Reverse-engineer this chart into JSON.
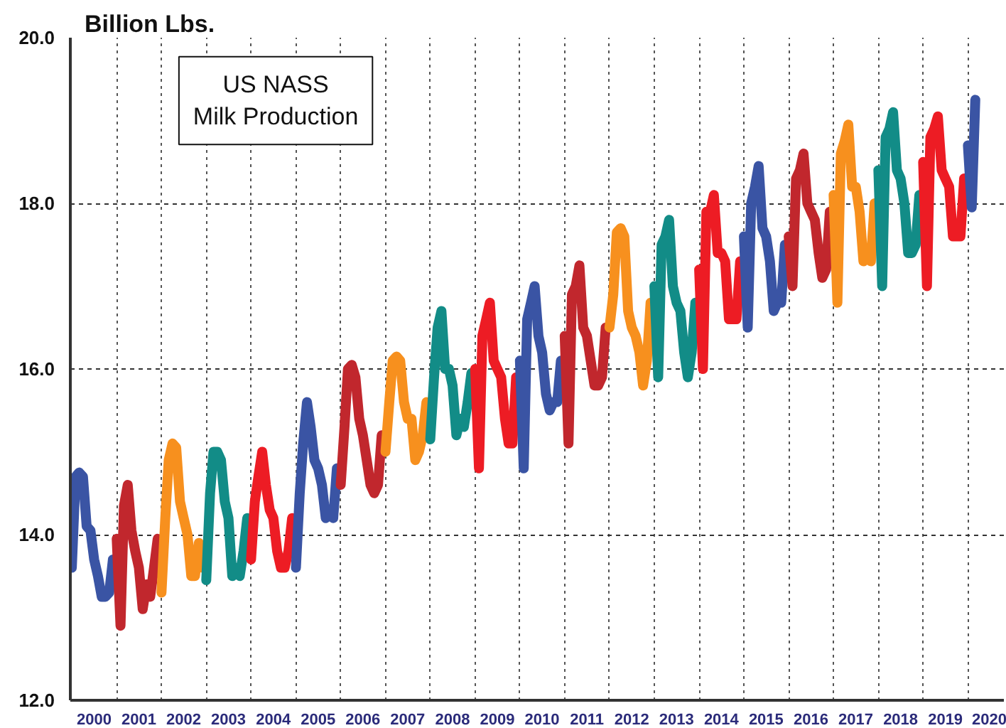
{
  "chart_data": {
    "type": "line",
    "title": "US NASS\nMilk Production",
    "ylabel": "Billion Lbs.",
    "xlim": [
      "1999-12-20",
      "2020-10-20"
    ],
    "ylim": [
      12,
      20
    ],
    "yticks": [
      {
        "value": 12,
        "label": "12.0"
      },
      {
        "value": 14,
        "label": "14.0"
      },
      {
        "value": 16,
        "label": "16.0"
      },
      {
        "value": 18,
        "label": "18.0"
      },
      {
        "value": 20,
        "label": "20.0"
      }
    ],
    "xticks": [
      {
        "value": "2000-07-01",
        "label": "2000"
      },
      {
        "value": "2001-01-01",
        "label": null
      },
      {
        "value": "2001-07-01",
        "label": "2001"
      },
      {
        "value": "2002-01-01",
        "label": null
      },
      {
        "value": "2002-07-01",
        "label": "2002"
      },
      {
        "value": "2003-01-01",
        "label": null
      },
      {
        "value": "2003-07-01",
        "label": "2003"
      },
      {
        "value": "2004-01-01",
        "label": null
      },
      {
        "value": "2004-07-01",
        "label": "2004"
      },
      {
        "value": "2005-01-01",
        "label": null
      },
      {
        "value": "2005-07-01",
        "label": "2005"
      },
      {
        "value": "2006-01-01",
        "label": null
      },
      {
        "value": "2006-07-01",
        "label": "2006"
      },
      {
        "value": "2007-01-01",
        "label": null
      },
      {
        "value": "2007-07-01",
        "label": "2007"
      },
      {
        "value": "2008-01-01",
        "label": null
      },
      {
        "value": "2008-07-01",
        "label": "2008"
      },
      {
        "value": "2009-01-01",
        "label": null
      },
      {
        "value": "2009-07-01",
        "label": "2009"
      },
      {
        "value": "2010-01-01",
        "label": null
      },
      {
        "value": "2010-07-01",
        "label": "2010"
      },
      {
        "value": "2011-01-01",
        "label": null
      },
      {
        "value": "2011-07-01",
        "label": "2011"
      },
      {
        "value": "2012-01-01",
        "label": null
      },
      {
        "value": "2012-07-01",
        "label": "2012"
      },
      {
        "value": "2013-01-01",
        "label": null
      },
      {
        "value": "2013-07-01",
        "label": "2013"
      },
      {
        "value": "2014-01-01",
        "label": null
      },
      {
        "value": "2014-07-01",
        "label": "2014"
      },
      {
        "value": "2015-01-01",
        "label": null
      },
      {
        "value": "2015-07-01",
        "label": "2015"
      },
      {
        "value": "2016-01-01",
        "label": null
      },
      {
        "value": "2016-07-01",
        "label": "2016"
      },
      {
        "value": "2017-01-01",
        "label": null
      },
      {
        "value": "2017-07-01",
        "label": "2017"
      },
      {
        "value": "2018-01-01",
        "label": null
      },
      {
        "value": "2018-07-01",
        "label": "2018"
      },
      {
        "value": "2019-01-01",
        "label": null
      },
      {
        "value": "2019-07-01",
        "label": "2019"
      },
      {
        "value": "2020-01-01",
        "label": null
      },
      {
        "value": "2020-07-01",
        "label": "2020"
      }
    ],
    "grid": true,
    "series": [
      {
        "color": "#3a54a4",
        "x": [
          "2000-01",
          "2000-02",
          "2000-03",
          "2000-04",
          "2000-05",
          "2000-06",
          "2000-07",
          "2000-08",
          "2000-09",
          "2000-10",
          "2000-11",
          "2000-12"
        ],
        "values": [
          13.6,
          14.7,
          14.75,
          14.7,
          14.1,
          14.05,
          13.7,
          13.5,
          13.25,
          13.25,
          13.3,
          13.7
        ]
      },
      {
        "color": "#c1272d",
        "x": [
          "2001-01",
          "2001-02",
          "2001-03",
          "2001-04",
          "2001-05",
          "2001-06",
          "2001-07",
          "2001-08",
          "2001-09",
          "2001-10",
          "2001-11",
          "2001-12"
        ],
        "values": [
          13.95,
          12.9,
          14.35,
          14.6,
          14.05,
          13.8,
          13.6,
          13.1,
          13.4,
          13.25,
          13.6,
          13.95
        ]
      },
      {
        "color": "#f7901e",
        "x": [
          "2002-01",
          "2002-02",
          "2002-03",
          "2002-04",
          "2002-05",
          "2002-06",
          "2002-07",
          "2002-08",
          "2002-09",
          "2002-10",
          "2002-11",
          "2002-12"
        ],
        "values": [
          13.3,
          14.2,
          14.9,
          15.1,
          15.05,
          14.4,
          14.2,
          14.0,
          13.5,
          13.5,
          13.9,
          13.6
        ]
      },
      {
        "color": "#128c87",
        "x": [
          "2003-01",
          "2003-02",
          "2003-03",
          "2003-04",
          "2003-05",
          "2003-06",
          "2003-07",
          "2003-08",
          "2003-09",
          "2003-10",
          "2003-11",
          "2003-12"
        ],
        "values": [
          13.45,
          14.5,
          15.0,
          15.0,
          14.9,
          14.4,
          14.2,
          13.5,
          13.6,
          13.5,
          13.8,
          14.2
        ]
      },
      {
        "color": "#ed1c24",
        "x": [
          "2004-01",
          "2004-02",
          "2004-03",
          "2004-04",
          "2004-05",
          "2004-06",
          "2004-07",
          "2004-08",
          "2004-09",
          "2004-10",
          "2004-11",
          "2004-12"
        ],
        "values": [
          13.7,
          14.4,
          14.7,
          15.0,
          14.6,
          14.3,
          14.2,
          13.8,
          13.6,
          13.6,
          13.8,
          14.2
        ]
      },
      {
        "color": "#3a54a4",
        "x": [
          "2005-01",
          "2005-02",
          "2005-03",
          "2005-04",
          "2005-05",
          "2005-06",
          "2005-07",
          "2005-08",
          "2005-09",
          "2005-10",
          "2005-11",
          "2005-12"
        ],
        "values": [
          13.6,
          14.5,
          15.1,
          15.6,
          15.3,
          14.9,
          14.8,
          14.6,
          14.2,
          14.3,
          14.2,
          14.8
        ]
      },
      {
        "color": "#c1272d",
        "x": [
          "2006-01",
          "2006-02",
          "2006-03",
          "2006-04",
          "2006-05",
          "2006-06",
          "2006-07",
          "2006-08",
          "2006-09",
          "2006-10",
          "2006-11",
          "2006-12"
        ],
        "values": [
          14.6,
          15.3,
          16.0,
          16.05,
          15.9,
          15.4,
          15.2,
          14.9,
          14.6,
          14.5,
          14.6,
          15.2
        ]
      },
      {
        "color": "#f7901e",
        "x": [
          "2007-01",
          "2007-02",
          "2007-03",
          "2007-04",
          "2007-05",
          "2007-06",
          "2007-07",
          "2007-08",
          "2007-09",
          "2007-10",
          "2007-11",
          "2007-12"
        ],
        "values": [
          15.0,
          15.6,
          16.1,
          16.15,
          16.1,
          15.6,
          15.4,
          15.4,
          14.9,
          15.0,
          15.2,
          15.6
        ]
      },
      {
        "color": "#128c87",
        "x": [
          "2008-01",
          "2008-02",
          "2008-03",
          "2008-04",
          "2008-05",
          "2008-06",
          "2008-07",
          "2008-08",
          "2008-09",
          "2008-10",
          "2008-11",
          "2008-12"
        ],
        "values": [
          15.15,
          15.9,
          16.5,
          16.7,
          16.0,
          16.0,
          15.8,
          15.2,
          15.4,
          15.3,
          15.6,
          15.95
        ]
      },
      {
        "color": "#ed1c24",
        "x": [
          "2009-01",
          "2009-02",
          "2009-03",
          "2009-04",
          "2009-05",
          "2009-06",
          "2009-07",
          "2009-08",
          "2009-09",
          "2009-10",
          "2009-11",
          "2009-12"
        ],
        "values": [
          16.0,
          14.8,
          16.4,
          16.6,
          16.8,
          16.1,
          16.0,
          15.9,
          15.4,
          15.1,
          15.1,
          15.9
        ]
      },
      {
        "color": "#3a54a4",
        "x": [
          "2010-01",
          "2010-02",
          "2010-03",
          "2010-04",
          "2010-05",
          "2010-06",
          "2010-07",
          "2010-08",
          "2010-09",
          "2010-10",
          "2010-11",
          "2010-12"
        ],
        "values": [
          16.1,
          14.8,
          16.6,
          16.8,
          17.0,
          16.4,
          16.2,
          15.7,
          15.5,
          15.6,
          15.6,
          16.1
        ]
      },
      {
        "color": "#c1272d",
        "x": [
          "2011-01",
          "2011-02",
          "2011-03",
          "2011-04",
          "2011-05",
          "2011-06",
          "2011-07",
          "2011-08",
          "2011-09",
          "2011-10",
          "2011-11",
          "2011-12"
        ],
        "values": [
          16.4,
          15.1,
          16.9,
          17.0,
          17.25,
          16.5,
          16.4,
          16.1,
          15.8,
          15.8,
          15.9,
          16.5
        ]
      },
      {
        "color": "#f7901e",
        "x": [
          "2012-01",
          "2012-02",
          "2012-03",
          "2012-04",
          "2012-05",
          "2012-06",
          "2012-07",
          "2012-08",
          "2012-09",
          "2012-10",
          "2012-11",
          "2012-12"
        ],
        "values": [
          16.5,
          16.9,
          17.65,
          17.7,
          17.6,
          16.7,
          16.5,
          16.4,
          16.2,
          15.8,
          16.1,
          16.8
        ]
      },
      {
        "color": "#128c87",
        "x": [
          "2013-01",
          "2013-02",
          "2013-03",
          "2013-04",
          "2013-05",
          "2013-06",
          "2013-07",
          "2013-08",
          "2013-09",
          "2013-10",
          "2013-11",
          "2013-12"
        ],
        "values": [
          17.0,
          15.9,
          17.5,
          17.6,
          17.8,
          17.0,
          16.8,
          16.7,
          16.2,
          15.9,
          16.2,
          16.8
        ]
      },
      {
        "color": "#ed1c24",
        "x": [
          "2014-01",
          "2014-02",
          "2014-03",
          "2014-04",
          "2014-05",
          "2014-06",
          "2014-07",
          "2014-08",
          "2014-09",
          "2014-10",
          "2014-11",
          "2014-12"
        ],
        "values": [
          17.2,
          16.0,
          17.9,
          17.9,
          18.1,
          17.4,
          17.4,
          17.3,
          16.6,
          16.6,
          16.6,
          17.3
        ]
      },
      {
        "color": "#3a54a4",
        "x": [
          "2015-01",
          "2015-02",
          "2015-03",
          "2015-04",
          "2015-05",
          "2015-06",
          "2015-07",
          "2015-08",
          "2015-09",
          "2015-10",
          "2015-11",
          "2015-12"
        ],
        "values": [
          17.6,
          16.5,
          18.0,
          18.2,
          18.45,
          17.7,
          17.6,
          17.3,
          16.7,
          16.8,
          16.8,
          17.5
        ]
      },
      {
        "color": "#c1272d",
        "x": [
          "2016-01",
          "2016-02",
          "2016-03",
          "2016-04",
          "2016-05",
          "2016-06",
          "2016-07",
          "2016-08",
          "2016-09",
          "2016-10",
          "2016-11",
          "2016-12"
        ],
        "values": [
          17.6,
          17.0,
          18.3,
          18.4,
          18.6,
          18.0,
          17.9,
          17.8,
          17.4,
          17.1,
          17.2,
          17.9
        ]
      },
      {
        "color": "#f7901e",
        "x": [
          "2017-01",
          "2017-02",
          "2017-03",
          "2017-04",
          "2017-05",
          "2017-06",
          "2017-07",
          "2017-08",
          "2017-09",
          "2017-10",
          "2017-11",
          "2017-12"
        ],
        "values": [
          18.1,
          16.8,
          18.6,
          18.75,
          18.95,
          18.2,
          18.2,
          17.9,
          17.3,
          17.4,
          17.3,
          18.0
        ]
      },
      {
        "color": "#128c87",
        "x": [
          "2018-01",
          "2018-02",
          "2018-03",
          "2018-04",
          "2018-05",
          "2018-06",
          "2018-07",
          "2018-08",
          "2018-09",
          "2018-10",
          "2018-11",
          "2018-12"
        ],
        "values": [
          18.4,
          17.0,
          18.8,
          18.9,
          19.1,
          18.4,
          18.3,
          18.0,
          17.4,
          17.4,
          17.5,
          18.1
        ]
      },
      {
        "color": "#ed1c24",
        "x": [
          "2019-01",
          "2019-02",
          "2019-03",
          "2019-04",
          "2019-05",
          "2019-06",
          "2019-07",
          "2019-08",
          "2019-09",
          "2019-10",
          "2019-11",
          "2019-12"
        ],
        "values": [
          18.5,
          17.0,
          18.8,
          18.9,
          19.05,
          18.4,
          18.3,
          18.2,
          17.6,
          17.6,
          17.6,
          18.3
        ]
      },
      {
        "color": "#3a54a4",
        "x": [
          "2020-01",
          "2020-02",
          "2020-03"
        ],
        "values": [
          18.7,
          17.95,
          19.25
        ]
      }
    ]
  }
}
